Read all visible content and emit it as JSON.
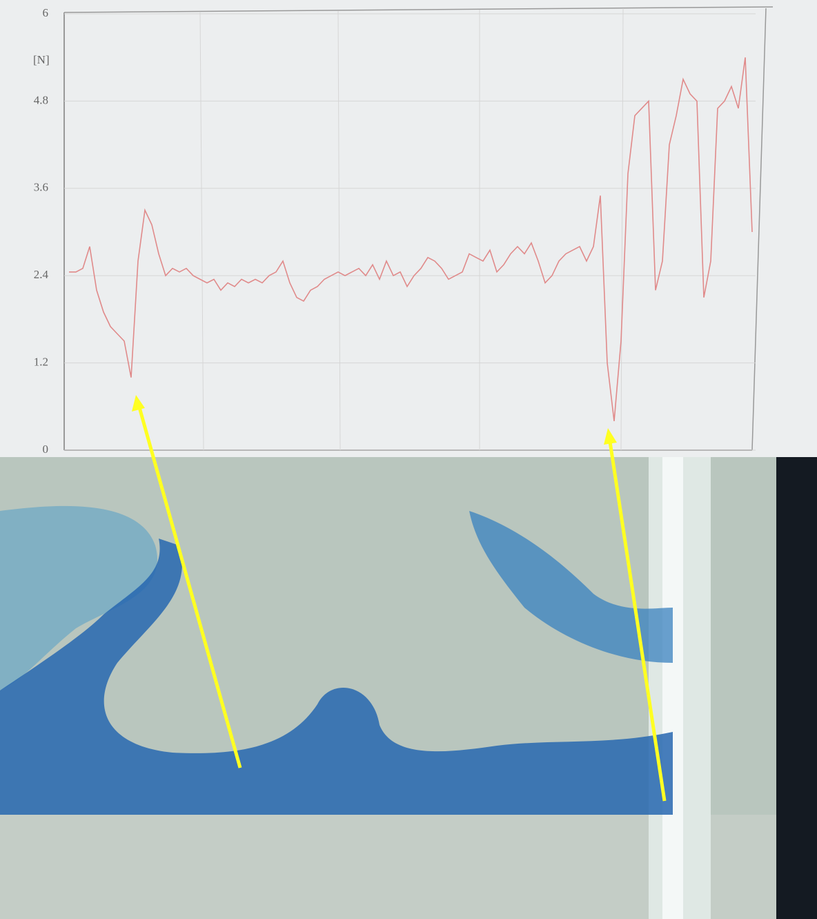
{
  "chart_data": {
    "type": "line",
    "unit_label": "[N]",
    "categories": [
      null,
      null,
      null,
      null,
      null,
      null,
      null,
      null,
      null,
      null,
      null,
      null,
      null,
      null,
      null,
      null,
      null,
      null,
      null,
      null,
      null,
      null,
      null,
      null,
      null,
      null,
      null,
      null,
      null,
      null,
      null,
      null,
      null,
      null,
      null,
      null,
      null,
      null,
      null,
      null,
      null,
      null,
      null,
      null,
      null,
      null,
      null,
      null,
      null,
      null,
      null,
      null,
      null,
      null,
      null,
      null,
      null,
      null,
      null,
      null,
      null,
      null,
      null,
      null,
      null,
      null,
      null,
      null,
      null,
      null,
      null,
      null,
      null,
      null,
      null,
      null,
      null,
      null,
      null,
      null,
      null,
      null,
      null,
      null,
      null,
      null,
      null,
      null,
      null,
      null,
      null,
      null,
      null,
      null,
      null,
      null,
      null,
      null,
      null,
      null
    ],
    "values": [
      2.45,
      2.45,
      2.5,
      2.8,
      2.2,
      1.9,
      1.7,
      1.6,
      1.5,
      1.0,
      2.6,
      3.3,
      3.1,
      2.7,
      2.4,
      2.5,
      2.45,
      2.5,
      2.4,
      2.35,
      2.3,
      2.35,
      2.2,
      2.3,
      2.25,
      2.35,
      2.3,
      2.35,
      2.3,
      2.4,
      2.45,
      2.6,
      2.3,
      2.1,
      2.05,
      2.2,
      2.25,
      2.35,
      2.4,
      2.45,
      2.4,
      2.45,
      2.5,
      2.4,
      2.55,
      2.35,
      2.6,
      2.4,
      2.45,
      2.25,
      2.4,
      2.5,
      2.65,
      2.6,
      2.5,
      2.35,
      2.4,
      2.45,
      2.7,
      2.65,
      2.6,
      2.75,
      2.45,
      2.55,
      2.7,
      2.8,
      2.7,
      2.85,
      2.6,
      2.3,
      2.4,
      2.6,
      2.7,
      2.75,
      2.8,
      2.6,
      2.8,
      3.5,
      1.2,
      0.4,
      1.5,
      3.8,
      4.6,
      4.7,
      4.8,
      2.2,
      2.6,
      4.2,
      4.6,
      5.1,
      4.9,
      4.8,
      2.1,
      2.6,
      4.7,
      4.8,
      5.0,
      4.7,
      5.4,
      3.0
    ],
    "color": "#e08a8a",
    "ylim": [
      0,
      6
    ],
    "yticks": [
      0,
      1.2,
      2.4,
      3.6,
      4.8,
      6
    ],
    "grid": true
  }
}
